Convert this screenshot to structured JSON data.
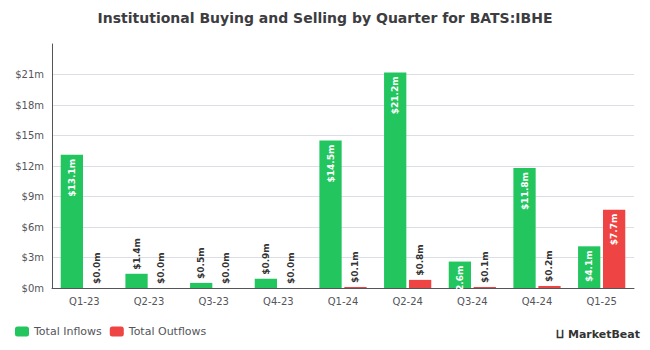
{
  "chart_data": {
    "type": "bar",
    "title": "Institutional Buying and Selling by Quarter for BATS:IBHE",
    "categories": [
      "Q1-23",
      "Q2-23",
      "Q3-23",
      "Q4-23",
      "Q1-24",
      "Q2-24",
      "Q3-24",
      "Q4-24",
      "Q1-25"
    ],
    "series": [
      {
        "name": "Total Inflows",
        "color": "#22c55e",
        "values": [
          13.1,
          1.4,
          0.5,
          0.9,
          14.5,
          21.2,
          2.6,
          11.8,
          4.1
        ],
        "value_labels": [
          "$13.1m",
          "$1.4m",
          "$0.5m",
          "$0.9m",
          "$14.5m",
          "$21.2m",
          "$2.6m",
          "$11.8m",
          "$4.1m"
        ]
      },
      {
        "name": "Total Outflows",
        "color": "#ef4444",
        "values": [
          0.0,
          0.0,
          0.0,
          0.0,
          0.1,
          0.8,
          0.1,
          0.2,
          7.7
        ],
        "value_labels": [
          "$0.0m",
          "$0.0m",
          "$0.0m",
          "$0.0m",
          "$0.1m",
          "$0.8m",
          "$0.1m",
          "$0.2m",
          "$7.7m"
        ]
      }
    ],
    "ylim": [
      0,
      24
    ],
    "yticks": [
      {
        "value": 0,
        "label": "$0m"
      },
      {
        "value": 3,
        "label": "$3m"
      },
      {
        "value": 6,
        "label": "$6m"
      },
      {
        "value": 9,
        "label": "$9m"
      },
      {
        "value": 12,
        "label": "$12m"
      },
      {
        "value": 15,
        "label": "$15m"
      },
      {
        "value": 18,
        "label": "$18m"
      },
      {
        "value": 21,
        "label": "$21m"
      }
    ],
    "grid": true,
    "data_labels": true,
    "legend": "lower left",
    "annotations": [
      "⨿ MarketBeat"
    ]
  }
}
